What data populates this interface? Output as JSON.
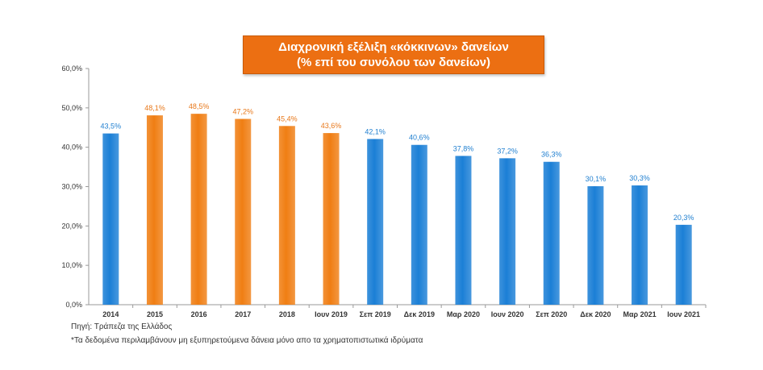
{
  "title": {
    "line1": "Διαχρονική εξέλιξη «κόκκινων» δανείων",
    "line2": "(% επί του συνόλου των δανείων)"
  },
  "source": "Πηγή: Τράπεζα της Ελλάδος",
  "note": "*Τα δεδομένα περιλαμβάνουν μη εξυπηρετούμενα δάνεια μόνο απο τα χρηματοπιστωτικά ιδρύματα",
  "colors": {
    "blue": "#1b7fd6",
    "orange": "#f07e13",
    "blue_label": "#1f7fd0",
    "orange_label": "#e8781a"
  },
  "chart_data": {
    "type": "bar",
    "title": "Διαχρονική εξέλιξη «κόκκινων» δανείων (% επί του συνόλου των δανείων)",
    "xlabel": "",
    "ylabel": "",
    "ylim": [
      0,
      60
    ],
    "yticks": [
      "0,0%",
      "10,0%",
      "20,0%",
      "30,0%",
      "40,0%",
      "50,0%",
      "60,0%"
    ],
    "grid": false,
    "categories": [
      "2014",
      "2015",
      "2016",
      "2017",
      "2018",
      "Ιουν 2019",
      "Σεπ 2019",
      "Δεκ 2019",
      "Μαρ 2020",
      "Ιουν 2020",
      "Σεπ 2020",
      "Δεκ 2020",
      "Μαρ 2021",
      "Ιουν 2021"
    ],
    "values": [
      43.5,
      48.1,
      48.5,
      47.2,
      45.4,
      43.6,
      42.1,
      40.6,
      37.8,
      37.2,
      36.3,
      30.1,
      30.3,
      20.3
    ],
    "labels": [
      "43,5%",
      "48,1%",
      "48,5%",
      "47,2%",
      "45,4%",
      "43,6%",
      "42,1%",
      "40,6%",
      "37,8%",
      "37,2%",
      "36,3%",
      "30,1%",
      "30,3%",
      "20,3%"
    ],
    "bar_colors": [
      "blue",
      "orange",
      "orange",
      "orange",
      "orange",
      "orange",
      "blue",
      "blue",
      "blue",
      "blue",
      "blue",
      "blue",
      "blue",
      "blue"
    ]
  }
}
